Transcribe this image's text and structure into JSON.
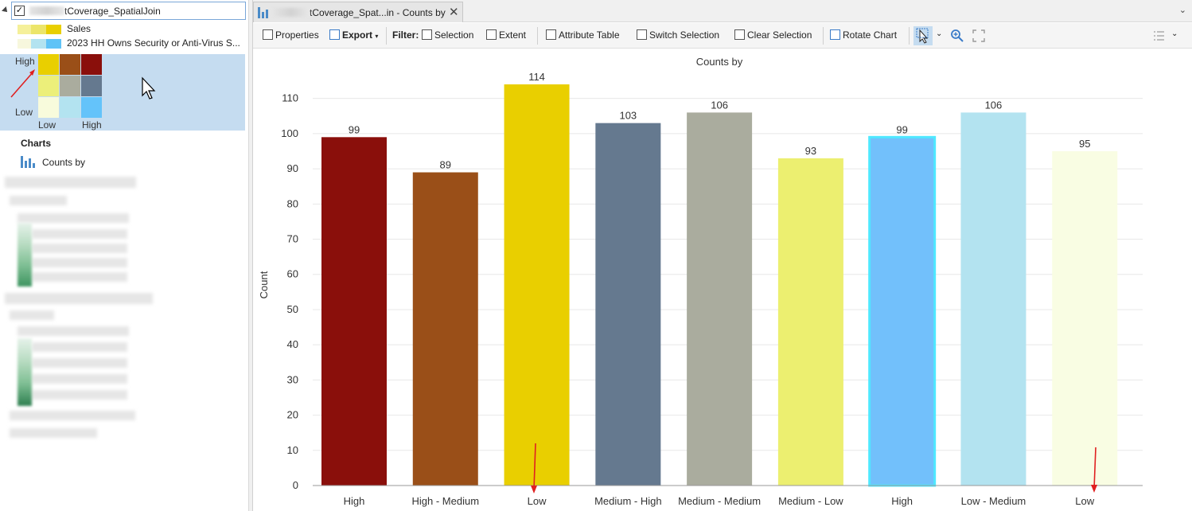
{
  "toc": {
    "layer_name": "tCoverage_SpatialJoin",
    "legend": [
      {
        "label": "Sales",
        "colors": [
          "#f5f09a",
          "#ece56a",
          "#e9cf00"
        ]
      },
      {
        "label": "2023 HH Owns Security or Anti-Virus S...",
        "colors": [
          "#f7f7dd",
          "#b3e3f0",
          "#5fc3f7"
        ]
      }
    ],
    "bivariate": {
      "y_high": "High",
      "y_low": "Low",
      "x_low": "Low",
      "x_high": "High",
      "grid": [
        [
          "#e9cf00",
          "#9a4f18",
          "#8a0f0b"
        ],
        [
          "#ecef7a",
          "#aaac9e",
          "#65798f"
        ],
        [
          "#f8fbdc",
          "#b3e3f0",
          "#64c3fa"
        ]
      ]
    },
    "charts_header": "Charts",
    "chart_item": "Counts by"
  },
  "tab": {
    "label": "tCoverage_Spat...in - Counts by",
    "close": "✕"
  },
  "toolbar": {
    "properties": "Properties",
    "export": "Export",
    "filter": "Filter:",
    "selection": "Selection",
    "extent": "Extent",
    "attribute_table": "Attribute Table",
    "switch_selection": "Switch Selection",
    "clear_selection": "Clear Selection",
    "rotate_chart": "Rotate Chart"
  },
  "chart_data": {
    "type": "bar",
    "title": "Counts by",
    "ylabel": "Count",
    "xlabel": "",
    "ylim": [
      0,
      114
    ],
    "yticks": [
      0,
      10,
      20,
      30,
      40,
      50,
      60,
      70,
      80,
      90,
      100,
      110
    ],
    "grid": true,
    "categories": [
      "High",
      "High - Medium",
      "Low",
      "Medium - High",
      "Medium - Medium",
      "Medium - Low",
      "High",
      "Low - Medium",
      "Low"
    ],
    "values": [
      99,
      89,
      114,
      103,
      106,
      93,
      99,
      106,
      95
    ],
    "colors": [
      "#8a0f0b",
      "#9a4f18",
      "#e9cf00",
      "#65798f",
      "#aaac9e",
      "#ecef70",
      "#72c0fb",
      "#b3e3f0",
      "#f9fde3"
    ]
  }
}
